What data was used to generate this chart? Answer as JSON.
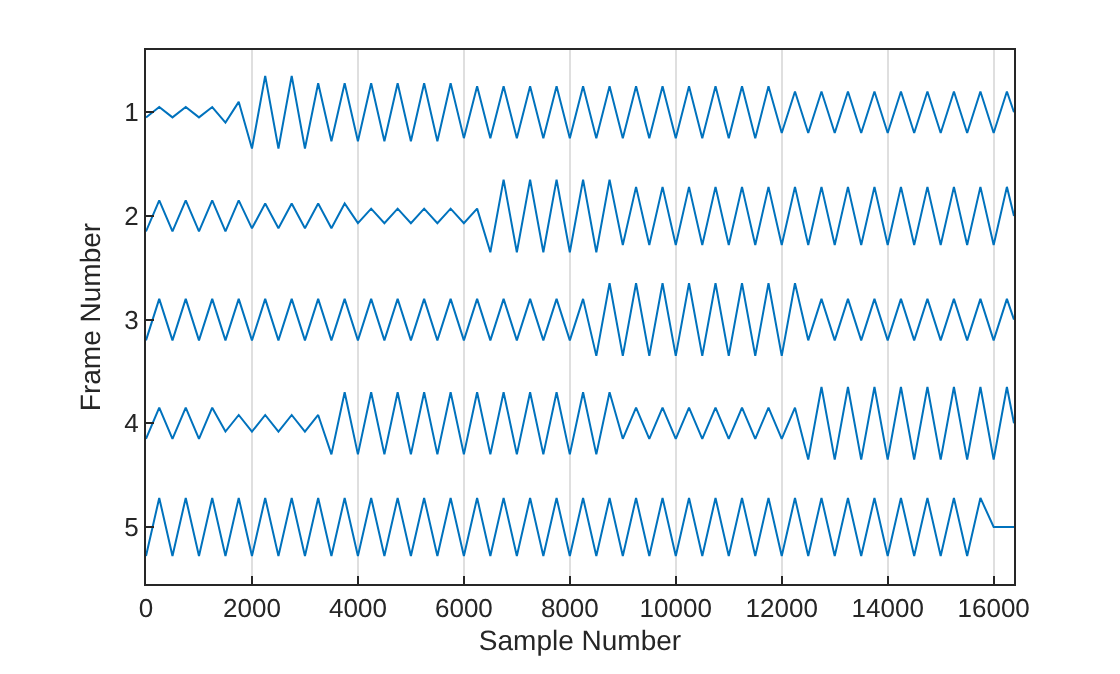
{
  "chart_data": {
    "type": "line",
    "xlabel": "Sample Number",
    "ylabel": "Frame Number",
    "x": [
      0,
      250,
      500,
      750,
      1000,
      1250,
      1500,
      1750,
      2000,
      2250,
      2500,
      2750,
      3000,
      3250,
      3500,
      3750,
      4000,
      4250,
      4500,
      4750,
      5000,
      5250,
      5500,
      5750,
      6000,
      6250,
      6500,
      6750,
      7000,
      7250,
      7500,
      7750,
      8000,
      8250,
      8500,
      8750,
      9000,
      9250,
      9500,
      9750,
      10000,
      10250,
      10500,
      10750,
      11000,
      11250,
      11500,
      11750,
      12000,
      12250,
      12500,
      12750,
      13000,
      13250,
      13500,
      13750,
      14000,
      14250,
      14500,
      14750,
      15000,
      15250,
      15500,
      15750,
      16000,
      16250,
      16384
    ],
    "series": [
      {
        "color": "#0072bd",
        "values": [
          1.05,
          0.95,
          1.05,
          0.95,
          1.05,
          0.95,
          1.1,
          0.9,
          1.35,
          0.65,
          1.35,
          0.65,
          1.35,
          0.72,
          1.28,
          0.72,
          1.28,
          0.72,
          1.28,
          0.72,
          1.28,
          0.72,
          1.28,
          0.72,
          1.25,
          0.75,
          1.25,
          0.75,
          1.25,
          0.75,
          1.25,
          0.75,
          1.25,
          0.75,
          1.25,
          0.75,
          1.25,
          0.75,
          1.25,
          0.75,
          1.25,
          0.75,
          1.25,
          0.75,
          1.25,
          0.75,
          1.25,
          0.75,
          1.2,
          0.8,
          1.2,
          0.8,
          1.2,
          0.8,
          1.2,
          0.8,
          1.2,
          0.8,
          1.2,
          0.8,
          1.2,
          0.8,
          1.2,
          0.8,
          1.2,
          0.8,
          1.0
        ]
      },
      {
        "color": "#0072bd",
        "values": [
          2.15,
          1.85,
          2.15,
          1.85,
          2.15,
          1.85,
          2.15,
          1.85,
          2.12,
          1.88,
          2.12,
          1.88,
          2.12,
          1.88,
          2.12,
          1.88,
          2.07,
          1.93,
          2.07,
          1.93,
          2.07,
          1.93,
          2.07,
          1.93,
          2.07,
          1.93,
          2.35,
          1.65,
          2.35,
          1.65,
          2.35,
          1.65,
          2.35,
          1.65,
          2.35,
          1.65,
          2.28,
          1.72,
          2.28,
          1.72,
          2.28,
          1.72,
          2.28,
          1.72,
          2.28,
          1.72,
          2.28,
          1.72,
          2.28,
          1.72,
          2.28,
          1.72,
          2.28,
          1.72,
          2.28,
          1.72,
          2.28,
          1.72,
          2.28,
          1.72,
          2.28,
          1.72,
          2.28,
          1.72,
          2.28,
          1.72,
          2.0
        ]
      },
      {
        "color": "#0072bd",
        "values": [
          3.2,
          2.8,
          3.2,
          2.8,
          3.2,
          2.8,
          3.2,
          2.8,
          3.2,
          2.8,
          3.2,
          2.8,
          3.2,
          2.8,
          3.2,
          2.8,
          3.2,
          2.8,
          3.2,
          2.8,
          3.2,
          2.8,
          3.2,
          2.8,
          3.2,
          2.8,
          3.2,
          2.8,
          3.2,
          2.8,
          3.2,
          2.8,
          3.2,
          2.8,
          3.35,
          2.65,
          3.35,
          2.65,
          3.35,
          2.65,
          3.35,
          2.65,
          3.35,
          2.65,
          3.35,
          2.65,
          3.35,
          2.65,
          3.35,
          2.65,
          3.2,
          2.8,
          3.2,
          2.8,
          3.2,
          2.8,
          3.2,
          2.8,
          3.2,
          2.8,
          3.2,
          2.8,
          3.2,
          2.8,
          3.2,
          2.8,
          3.0
        ]
      },
      {
        "color": "#0072bd",
        "values": [
          4.15,
          3.85,
          4.15,
          3.85,
          4.15,
          3.85,
          4.08,
          3.92,
          4.08,
          3.92,
          4.08,
          3.92,
          4.08,
          3.92,
          4.3,
          3.7,
          4.3,
          3.7,
          4.3,
          3.7,
          4.3,
          3.7,
          4.3,
          3.7,
          4.3,
          3.7,
          4.3,
          3.7,
          4.3,
          3.7,
          4.3,
          3.7,
          4.3,
          3.7,
          4.3,
          3.7,
          4.15,
          3.85,
          4.15,
          3.85,
          4.15,
          3.85,
          4.15,
          3.85,
          4.15,
          3.85,
          4.15,
          3.85,
          4.15,
          3.85,
          4.35,
          3.65,
          4.35,
          3.65,
          4.35,
          3.65,
          4.35,
          3.65,
          4.35,
          3.65,
          4.35,
          3.65,
          4.35,
          3.65,
          4.35,
          3.65,
          4.0
        ]
      },
      {
        "color": "#0072bd",
        "values": [
          5.28,
          4.72,
          5.28,
          4.72,
          5.28,
          4.72,
          5.28,
          4.72,
          5.28,
          4.72,
          5.28,
          4.72,
          5.28,
          4.72,
          5.28,
          4.72,
          5.28,
          4.72,
          5.28,
          4.72,
          5.28,
          4.72,
          5.28,
          4.72,
          5.28,
          4.72,
          5.28,
          4.72,
          5.28,
          4.72,
          5.28,
          4.72,
          5.28,
          4.72,
          5.28,
          4.72,
          5.28,
          4.72,
          5.28,
          4.72,
          5.28,
          4.72,
          5.28,
          4.72,
          5.28,
          4.72,
          5.28,
          4.72,
          5.28,
          4.72,
          5.28,
          4.72,
          5.28,
          4.72,
          5.28,
          4.72,
          5.28,
          4.72,
          5.28,
          4.72,
          5.28,
          4.72,
          5.28,
          4.72,
          5.0,
          5.0,
          5.0
        ]
      }
    ],
    "xlim": [
      0,
      16384
    ],
    "xticks": [
      0,
      2000,
      4000,
      6000,
      8000,
      10000,
      12000,
      14000,
      16000
    ],
    "ylim": [
      5.55,
      0.4
    ],
    "yticks": [
      1,
      2,
      3,
      4,
      5
    ],
    "grid": "x"
  }
}
